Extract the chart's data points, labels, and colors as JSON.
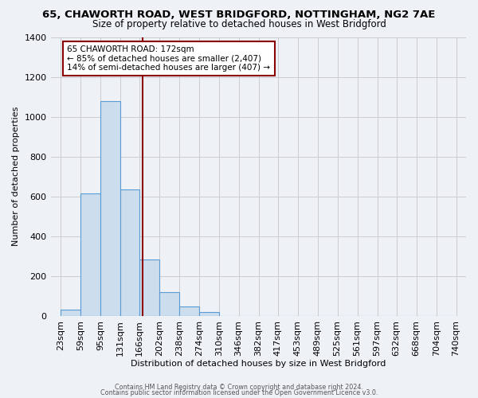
{
  "title": "65, CHAWORTH ROAD, WEST BRIDGFORD, NOTTINGHAM, NG2 7AE",
  "subtitle": "Size of property relative to detached houses in West Bridgford",
  "xlabel": "Distribution of detached houses by size in West Bridgford",
  "ylabel": "Number of detached properties",
  "bar_edges": [
    23,
    59,
    95,
    131,
    166,
    202,
    238,
    274,
    310,
    346,
    382,
    417,
    453,
    489,
    525,
    561,
    597,
    632,
    668,
    704,
    740
  ],
  "bar_heights": [
    30,
    615,
    1080,
    635,
    285,
    120,
    47,
    20,
    0,
    0,
    0,
    0,
    0,
    0,
    0,
    0,
    0,
    0,
    0,
    0
  ],
  "bar_color": "#ccdded",
  "bar_edge_color": "#5b9bd5",
  "property_line_x": 172,
  "property_line_color": "#8b0000",
  "annotation_line1": "65 CHAWORTH ROAD: 172sqm",
  "annotation_line2": "← 85% of detached houses are smaller (2,407)",
  "annotation_line3": "14% of semi-detached houses are larger (407) →",
  "ylim": [
    0,
    1400
  ],
  "yticks": [
    0,
    200,
    400,
    600,
    800,
    1000,
    1200,
    1400
  ],
  "tick_labels": [
    "23sqm",
    "59sqm",
    "95sqm",
    "131sqm",
    "166sqm",
    "202sqm",
    "238sqm",
    "274sqm",
    "310sqm",
    "346sqm",
    "382sqm",
    "417sqm",
    "453sqm",
    "489sqm",
    "525sqm",
    "561sqm",
    "597sqm",
    "632sqm",
    "668sqm",
    "704sqm",
    "740sqm"
  ],
  "footer_line1": "Contains HM Land Registry data © Crown copyright and database right 2024.",
  "footer_line2": "Contains public sector information licensed under the Open Government Licence v3.0.",
  "background_color": "#eef2f7",
  "plot_background_color": "#eef2f7",
  "grid_color": "#cccccc",
  "title_fontsize": 9.5,
  "subtitle_fontsize": 8.5
}
